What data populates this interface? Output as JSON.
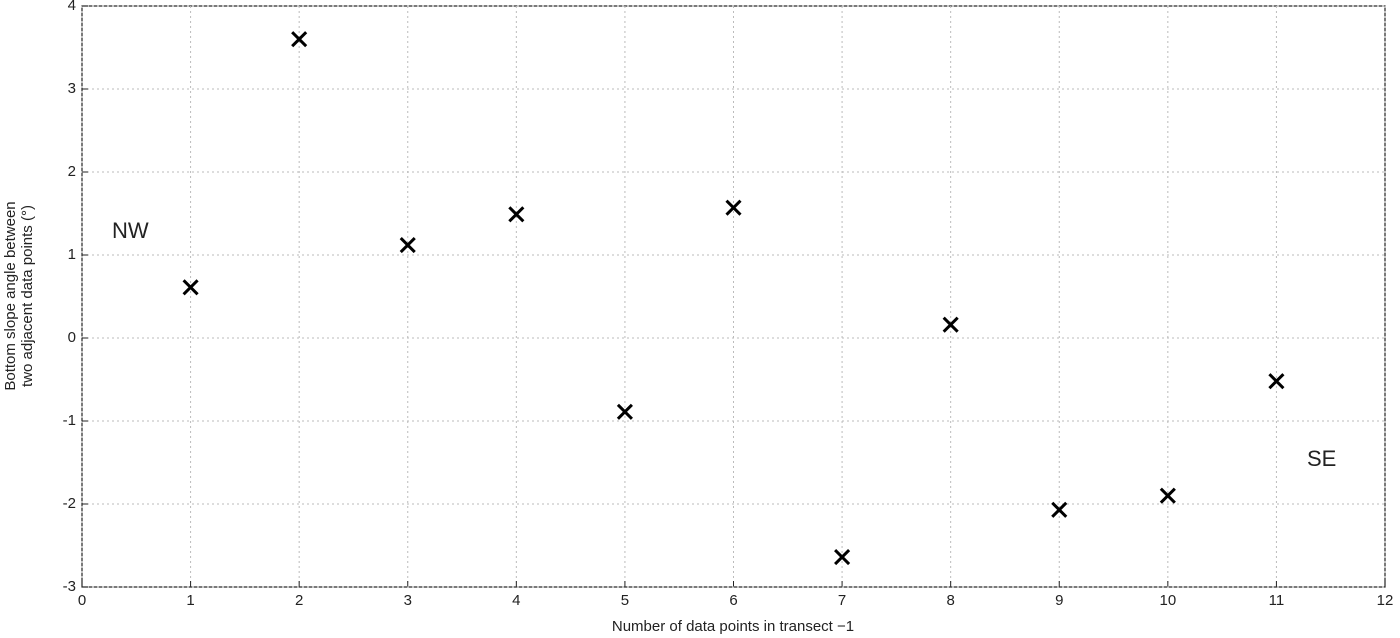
{
  "chart_data": {
    "type": "scatter",
    "xlabel": "Number of data points in transect −1",
    "ylabel": [
      "Bottom slope angle between",
      "two adjacent data points (°)"
    ],
    "annotations": [
      "NW",
      "SE"
    ],
    "x": [
      1,
      2,
      3,
      4,
      5,
      6,
      7,
      8,
      9,
      10,
      11
    ],
    "values": [
      0.61,
      3.6,
      1.12,
      1.49,
      -0.89,
      1.57,
      -2.64,
      0.16,
      -2.07,
      -1.9,
      -0.52
    ],
    "color": "#000000",
    "xlim": [
      0,
      12
    ],
    "xticks": [
      0,
      1,
      2,
      3,
      4,
      5,
      6,
      7,
      8,
      9,
      10,
      11,
      12
    ],
    "ylim": [
      -3,
      4
    ],
    "yticks": [
      -3,
      -2,
      -1,
      0,
      1,
      2,
      3,
      4
    ],
    "grid": true
  }
}
